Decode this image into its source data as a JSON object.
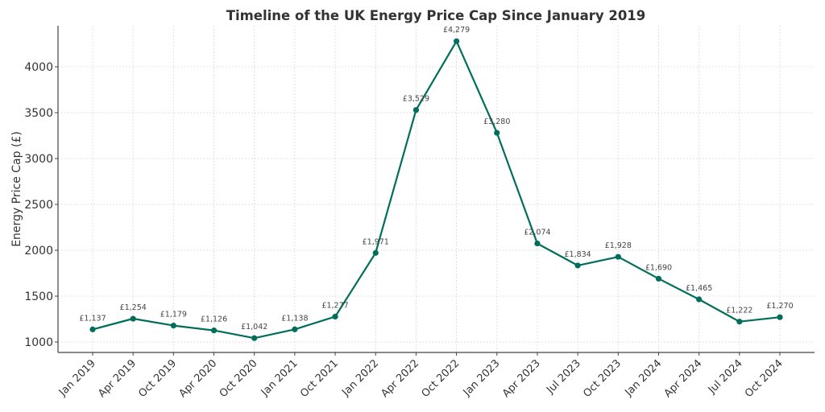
{
  "chart_data": {
    "type": "line",
    "title": "Timeline of the UK Energy Price Cap Since January 2019",
    "xlabel": "",
    "ylabel": "Energy Price Cap (£)",
    "categories": [
      "Jan 2019",
      "Apr 2019",
      "Oct 2019",
      "Apr 2020",
      "Oct 2020",
      "Jan 2021",
      "Oct 2021",
      "Jan 2022",
      "Apr 2022",
      "Oct 2022",
      "Jan 2023",
      "Apr 2023",
      "Jul 2023",
      "Oct 2023",
      "Jan 2024",
      "Apr 2024",
      "Jul 2024",
      "Oct 2024"
    ],
    "series": [
      {
        "name": "Energy Price Cap",
        "color": "#006e5a",
        "values": [
          1137,
          1254,
          1179,
          1126,
          1042,
          1138,
          1277,
          1971,
          3529,
          4279,
          3280,
          2074,
          1834,
          1928,
          1690,
          1465,
          1222,
          1270
        ],
        "data_labels": [
          "£1,137",
          "£1,254",
          "£1,179",
          "£1,126",
          "£1,042",
          "£1,138",
          "£1,277",
          "£1,971",
          "£3,529",
          "£4,279",
          "£3,280",
          "£2,074",
          "£1,834",
          "£1,928",
          "£1,690",
          "£1,465",
          "£1,222",
          "£1,270"
        ]
      }
    ],
    "yticks": [
      1000,
      1500,
      2000,
      2500,
      3000,
      3500,
      4000
    ],
    "ytick_labels": [
      "1000",
      "1500",
      "2000",
      "2500",
      "3000",
      "3500",
      "4000"
    ],
    "ylim": [
      885,
      4440
    ],
    "grid": true,
    "legend": "none"
  }
}
